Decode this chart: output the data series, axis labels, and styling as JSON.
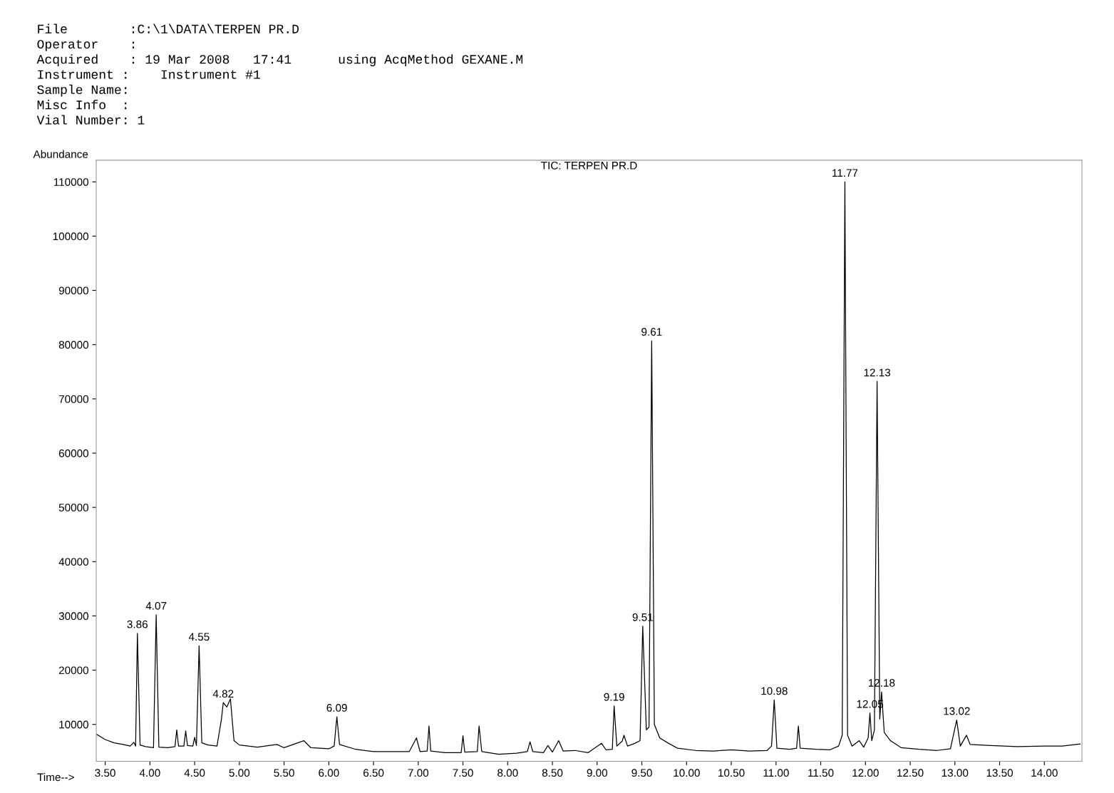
{
  "chart_data": {
    "type": "line",
    "title": "TIC: TERPEN PR.D",
    "xlabel": "Time-->",
    "ylabel": "Abundance",
    "xlim": [
      3.4,
      14.42
    ],
    "ylim": [
      3200,
      114000
    ],
    "xticks": [
      {
        "value": 3.5,
        "label": "3.50"
      },
      {
        "value": 4.0,
        "label": "4.00"
      },
      {
        "value": 4.5,
        "label": "4.50"
      },
      {
        "value": 5.0,
        "label": "5.00"
      },
      {
        "value": 5.5,
        "label": "5.50"
      },
      {
        "value": 6.0,
        "label": "6.00"
      },
      {
        "value": 6.5,
        "label": "6.50"
      },
      {
        "value": 7.0,
        "label": "7.00"
      },
      {
        "value": 7.5,
        "label": "7.50"
      },
      {
        "value": 8.0,
        "label": "8.00"
      },
      {
        "value": 8.5,
        "label": "8.50"
      },
      {
        "value": 9.0,
        "label": "9.00"
      },
      {
        "value": 9.5,
        "label": "9.50"
      },
      {
        "value": 10.0,
        "label": "10.00"
      },
      {
        "value": 10.5,
        "label": "10.50"
      },
      {
        "value": 11.0,
        "label": "11.00"
      },
      {
        "value": 11.5,
        "label": "11.50"
      },
      {
        "value": 12.0,
        "label": "12.00"
      },
      {
        "value": 12.5,
        "label": "12.50"
      },
      {
        "value": 13.0,
        "label": "13.00"
      },
      {
        "value": 13.5,
        "label": "13.50"
      },
      {
        "value": 14.0,
        "label": "14.00"
      }
    ],
    "yticks": [
      10000,
      20000,
      30000,
      40000,
      50000,
      60000,
      70000,
      80000,
      90000,
      100000,
      110000
    ],
    "grid": false,
    "legend": false,
    "marker": "none",
    "line_style": "solid",
    "series": [
      {
        "color": "#000000",
        "x": [
          3.4,
          3.5,
          3.6,
          3.7,
          3.78,
          3.82,
          3.84,
          3.86,
          3.89,
          3.95,
          4.04,
          4.07,
          4.1,
          4.2,
          4.28,
          4.3,
          4.32,
          4.38,
          4.4,
          4.42,
          4.48,
          4.5,
          4.52,
          4.55,
          4.58,
          4.65,
          4.75,
          4.8,
          4.82,
          4.86,
          4.9,
          4.94,
          5.0,
          5.2,
          5.42,
          5.5,
          5.72,
          5.8,
          6.0,
          6.06,
          6.09,
          6.12,
          6.3,
          6.5,
          6.7,
          6.9,
          6.98,
          7.02,
          7.1,
          7.12,
          7.14,
          7.3,
          7.48,
          7.5,
          7.52,
          7.66,
          7.68,
          7.71,
          7.9,
          8.1,
          8.22,
          8.25,
          8.28,
          8.4,
          8.45,
          8.5,
          8.57,
          8.62,
          8.75,
          8.9,
          9.05,
          9.1,
          9.17,
          9.19,
          9.22,
          9.28,
          9.3,
          9.34,
          9.42,
          9.48,
          9.51,
          9.55,
          9.58,
          9.61,
          9.64,
          9.7,
          9.8,
          9.9,
          10.1,
          10.3,
          10.5,
          10.7,
          10.9,
          10.95,
          10.98,
          11.01,
          11.15,
          11.23,
          11.25,
          11.27,
          11.45,
          11.6,
          11.7,
          11.74,
          11.77,
          11.8,
          11.85,
          11.93,
          11.98,
          12.03,
          12.05,
          12.07,
          12.1,
          12.13,
          12.16,
          12.18,
          12.21,
          12.28,
          12.4,
          12.6,
          12.8,
          12.95,
          13.02,
          13.06,
          13.13,
          13.17,
          13.4,
          13.7,
          14.0,
          14.2,
          14.4
        ],
        "values": [
          8200,
          7200,
          6600,
          6300,
          6000,
          6700,
          6000,
          26800,
          6200,
          5900,
          5700,
          30200,
          5800,
          5700,
          5900,
          9000,
          6000,
          6000,
          8800,
          6100,
          6000,
          7600,
          6100,
          24500,
          6600,
          6200,
          6000,
          11000,
          14000,
          13200,
          14700,
          7000,
          6200,
          5800,
          6300,
          5700,
          7000,
          5700,
          5500,
          6000,
          11400,
          6300,
          5400,
          5000,
          5000,
          5000,
          7500,
          5000,
          5100,
          9700,
          5100,
          4800,
          4800,
          7900,
          4900,
          5000,
          9700,
          5000,
          4500,
          4700,
          5000,
          6800,
          5000,
          4800,
          6100,
          4900,
          7000,
          5100,
          5200,
          4800,
          6500,
          5300,
          5400,
          13400,
          6000,
          6900,
          8000,
          6000,
          6500,
          7000,
          28100,
          9000,
          9500,
          80700,
          10000,
          7500,
          6500,
          5600,
          5200,
          5100,
          5300,
          5100,
          5200,
          6000,
          14500,
          5600,
          5400,
          5600,
          9700,
          5600,
          5400,
          5300,
          6000,
          8000,
          110000,
          8000,
          6000,
          7000,
          5800,
          7500,
          12100,
          7000,
          9000,
          73200,
          11000,
          16000,
          8500,
          7000,
          5700,
          5400,
          5200,
          5500,
          10800,
          6000,
          8000,
          6300,
          6100,
          5900,
          6000,
          6000,
          6400
        ]
      }
    ],
    "annotations": [
      "File        :C:\\1\\DATA\\TERPEN PR.D",
      "Operator    :",
      "Acquired    : 19 Mar 2008   17:41      using AcqMethod GEXANE.M",
      "Instrument :    Instrument #1",
      "Sample Name:",
      "Misc Info  :",
      "Vial Number: 1",
      {
        "text": "3.86",
        "x": 3.86,
        "y": 26800
      },
      {
        "text": "4.07",
        "x": 4.07,
        "y": 30200
      },
      {
        "text": "4.55",
        "x": 4.55,
        "y": 24500
      },
      {
        "text": "4.82",
        "x": 4.82,
        "y": 14000
      },
      {
        "text": "6.09",
        "x": 6.09,
        "y": 11400
      },
      {
        "text": "9.19",
        "x": 9.19,
        "y": 13400
      },
      {
        "text": "9.51",
        "x": 9.51,
        "y": 28100
      },
      {
        "text": "9.61",
        "x": 9.61,
        "y": 80700
      },
      {
        "text": "10.98",
        "x": 10.98,
        "y": 14500
      },
      {
        "text": "11.77",
        "x": 11.77,
        "y": 110000
      },
      {
        "text": "12.05",
        "x": 12.05,
        "y": 12100
      },
      {
        "text": "12.13",
        "x": 12.13,
        "y": 73200
      },
      {
        "text": "12.18",
        "x": 12.18,
        "y": 16000
      },
      {
        "text": "13.02",
        "x": 13.02,
        "y": 10800
      }
    ]
  }
}
